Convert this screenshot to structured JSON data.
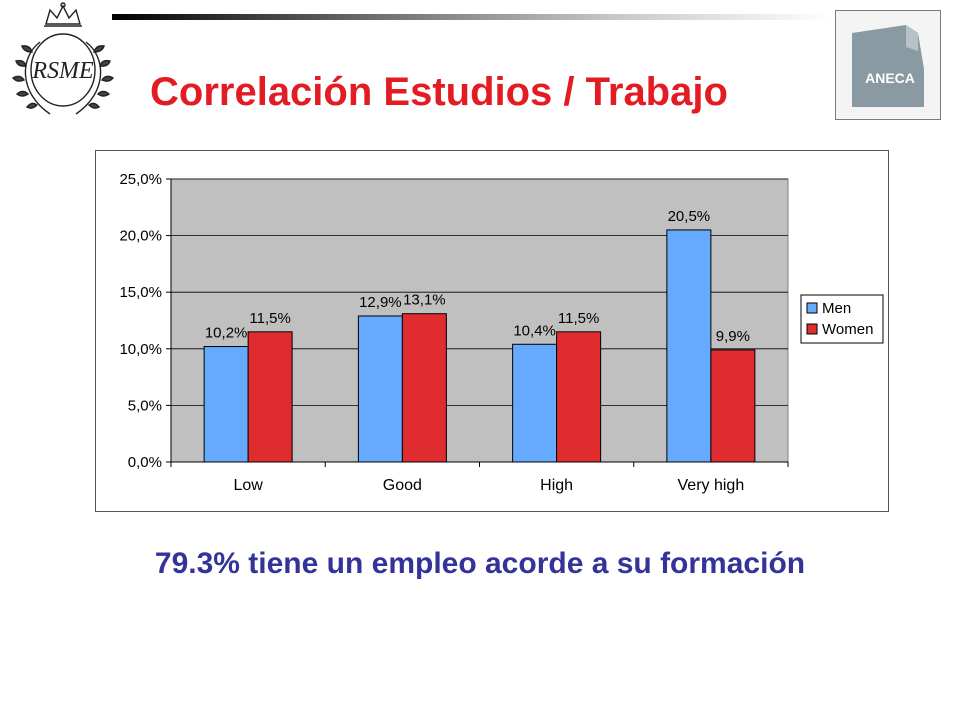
{
  "slide": {
    "title": "Correlación Estudios / Trabajo",
    "caption": "79.3% tiene un empleo acorde a su formación",
    "aneca_logo_text": "ANECA",
    "rsme_logo_text": "RSME"
  },
  "colors": {
    "title": "#e31b23",
    "caption": "#333399",
    "men": "#66aaff",
    "women": "#e02b2f",
    "plot_background": "#c0c0c0"
  },
  "chart_data": {
    "type": "bar",
    "categories": [
      "Low",
      "Good",
      "High",
      "Very high"
    ],
    "series": [
      {
        "name": "Men",
        "values": [
          10.2,
          12.9,
          10.4,
          20.5
        ],
        "labels": [
          "10,2%",
          "12,9%",
          "10,4%",
          "20,5%"
        ]
      },
      {
        "name": "Women",
        "values": [
          11.5,
          13.1,
          11.5,
          9.9
        ],
        "labels": [
          "11,5%",
          "13,1%",
          "11,5%",
          "9,9%"
        ]
      }
    ],
    "ylim": [
      0,
      25
    ],
    "yticks": [
      "0,0%",
      "5,0%",
      "10,0%",
      "15,0%",
      "20,0%",
      "25,0%"
    ],
    "ytick_values": [
      0,
      5,
      10,
      15,
      20,
      25
    ],
    "legend_position": "right",
    "grid": true,
    "title": "",
    "xlabel": "",
    "ylabel": ""
  }
}
